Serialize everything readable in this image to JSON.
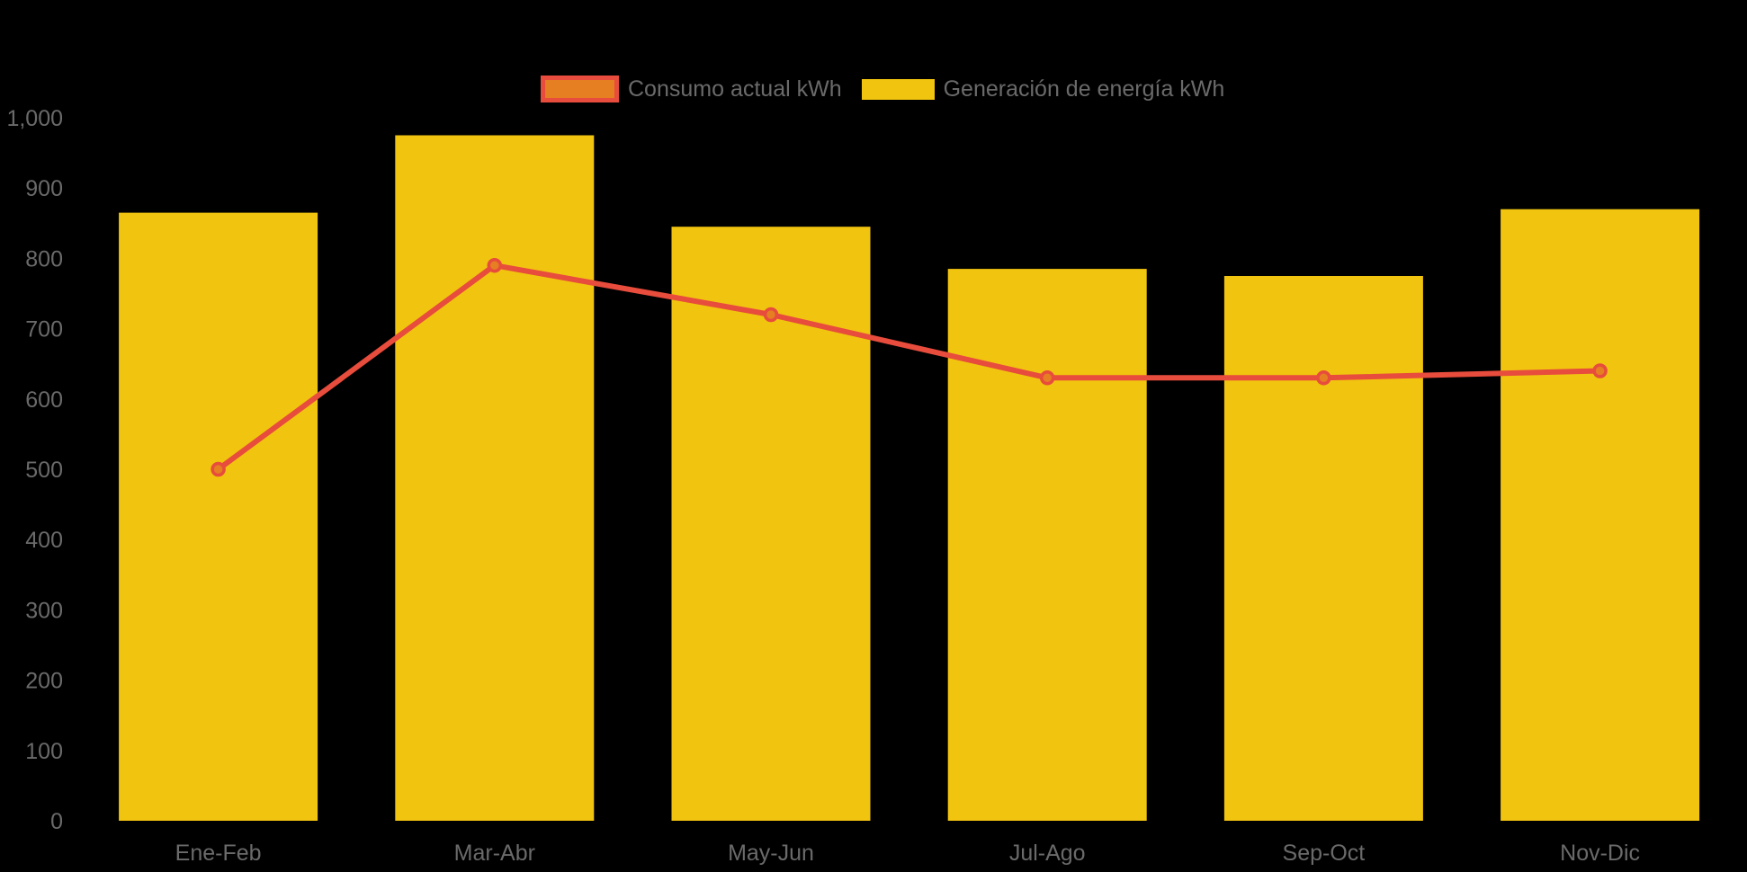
{
  "chart_data": {
    "type": "bar",
    "categories": [
      "Ene-Feb",
      "Mar-Abr",
      "May-Jun",
      "Jul-Ago",
      "Sep-Oct",
      "Nov-Dic"
    ],
    "series": [
      {
        "name": "Consumo actual kWh",
        "type": "line",
        "values": [
          500,
          790,
          720,
          630,
          630,
          640
        ],
        "color": "#e74c3c",
        "marker_color": "#e67e22"
      },
      {
        "name": "Generación de energía kWh",
        "type": "bar",
        "values": [
          865,
          975,
          845,
          785,
          775,
          870
        ],
        "color": "#f1c40f"
      }
    ],
    "title": "",
    "xlabel": "",
    "ylabel": "",
    "ylim": [
      0,
      1000
    ],
    "ytick_step": 100,
    "ytick_labels": [
      "0",
      "100",
      "200",
      "300",
      "400",
      "500",
      "600",
      "700",
      "800",
      "900",
      "1,000"
    ],
    "grid": false,
    "legend_position": "top",
    "background_color": "#000000",
    "axis_text_color": "#6a6a6a"
  }
}
